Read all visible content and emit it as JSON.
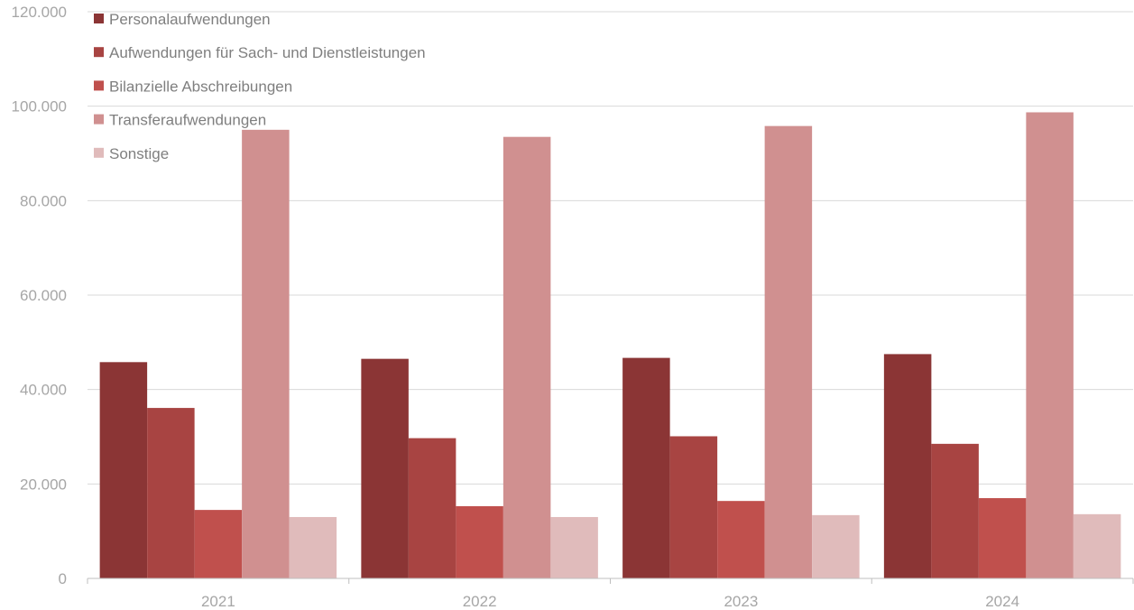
{
  "chart_data": {
    "type": "bar",
    "categories": [
      "2021",
      "2022",
      "2023",
      "2024"
    ],
    "series": [
      {
        "name": "Personalaufwendungen",
        "color": "#8b3535",
        "values": [
          45800,
          46500,
          46700,
          47500
        ]
      },
      {
        "name": "Aufwendungen für Sach- und Dienstleistungen",
        "color": "#a84442",
        "values": [
          36100,
          29700,
          30100,
          28500
        ]
      },
      {
        "name": "Bilanzielle Abschreibungen",
        "color": "#c0504d",
        "values": [
          14500,
          15300,
          16400,
          17000
        ]
      },
      {
        "name": "Transferaufwendungen",
        "color": "#d09090",
        "values": [
          95000,
          93500,
          95800,
          98700
        ]
      },
      {
        "name": "Sonstige",
        "color": "#e0bbbb",
        "values": [
          13000,
          13000,
          13400,
          13600
        ]
      }
    ],
    "y_ticks": [
      "0",
      "20.000",
      "40.000",
      "60.000",
      "80.000",
      "100.000",
      "120.000"
    ],
    "ylim": [
      0,
      120000
    ],
    "grid": true,
    "legend_position": "top-left"
  }
}
